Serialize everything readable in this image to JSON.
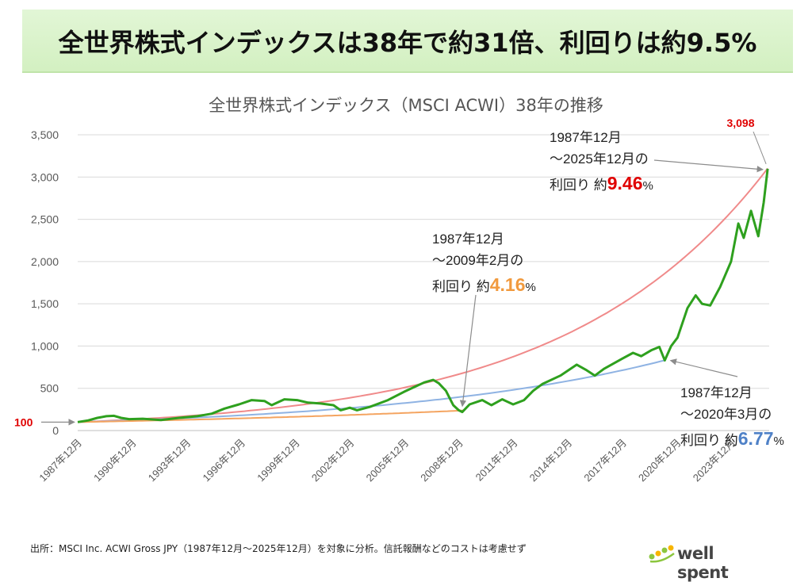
{
  "banner": {
    "text": "全世界株式インデックスは38年で約31倍、利回りは約9.5%"
  },
  "source": "出所：MSCI Inc. ACWI Gross JPY（1987年12月～2025年12月）を対象に分析。信託報酬などのコストは考慮せず",
  "logo": {
    "text": "well spent",
    "icon": "leaf-dots-icon"
  },
  "chart_data": {
    "type": "line",
    "title": "全世界株式インデックス（MSCI ACWI）38年の推移",
    "xlabel": "",
    "ylabel": "",
    "ylim": [
      0,
      3500
    ],
    "yticks": [
      0,
      500,
      1000,
      1500,
      2000,
      2500,
      3000,
      3500
    ],
    "ytick_labels": [
      "0",
      "500",
      "1,000",
      "1,500",
      "2,000",
      "2,500",
      "3,000",
      "3,500"
    ],
    "xlim": [
      1987.917,
      2026.0
    ],
    "xticks": [
      1987.917,
      1990.917,
      1993.917,
      1996.917,
      1999.917,
      2002.917,
      2005.917,
      2008.917,
      2011.917,
      2014.917,
      2017.917,
      2020.917,
      2023.917
    ],
    "xtick_labels": [
      "1987年12月",
      "1990年12月",
      "1993年12月",
      "1996年12月",
      "1999年12月",
      "2002年12月",
      "2005年12月",
      "2008年12月",
      "2011年12月",
      "2014年12月",
      "2017年12月",
      "2020年12月",
      "2023年12月"
    ],
    "grid": true,
    "legend": "none",
    "colors": {
      "index": "#2ea01e",
      "curve_2025": "#f08a8a",
      "curve_2020": "#8fb3e3",
      "curve_2009": "#f4a460",
      "highlight_red": "#e00000",
      "highlight_orange": "#f19a3e",
      "highlight_blue": "#4f81c7"
    },
    "series": [
      {
        "key": "index",
        "x": [
          1987.917,
          1988.5,
          1989.0,
          1989.5,
          1989.917,
          1990.3,
          1990.75,
          1991.5,
          1992.5,
          1993.5,
          1994.5,
          1995.3,
          1996.0,
          1996.8,
          1997.5,
          1998.2,
          1998.6,
          1999.3,
          2000.0,
          2000.6,
          2001.3,
          2002.0,
          2002.4,
          2002.9,
          2003.3,
          2004.0,
          2005.0,
          2005.9,
          2006.5,
          2007.0,
          2007.5,
          2007.8,
          2008.2,
          2008.6,
          2008.9,
          2009.1,
          2009.5,
          2010.2,
          2010.7,
          2011.3,
          2011.9,
          2012.5,
          2013.0,
          2013.5,
          2014.5,
          2015.4,
          2015.9,
          2016.4,
          2016.9,
          2017.9,
          2018.5,
          2018.95,
          2019.5,
          2019.95,
          2020.25,
          2020.6,
          2020.95,
          2021.5,
          2021.95,
          2022.3,
          2022.75,
          2023.3,
          2023.9,
          2024.3,
          2024.6,
          2025.0,
          2025.4,
          2025.7,
          2025.917
        ],
        "y": [
          100,
          120,
          150,
          170,
          175,
          150,
          135,
          140,
          125,
          150,
          170,
          200,
          260,
          310,
          360,
          350,
          300,
          370,
          360,
          330,
          320,
          300,
          240,
          270,
          240,
          280,
          360,
          460,
          520,
          570,
          600,
          560,
          470,
          300,
          240,
          220,
          310,
          360,
          300,
          370,
          310,
          360,
          470,
          550,
          650,
          780,
          720,
          650,
          730,
          850,
          920,
          880,
          950,
          990,
          830,
          1000,
          1100,
          1450,
          1600,
          1500,
          1480,
          1700,
          2000,
          2450,
          2280,
          2600,
          2300,
          2700,
          3098
        ]
      },
      {
        "key": "curve_2025",
        "start": 100,
        "rate_pct": 9.46,
        "from": 1987.917,
        "to": 2025.917
      },
      {
        "key": "curve_2020",
        "start": 100,
        "rate_pct": 6.77,
        "from": 1987.917,
        "to": 2020.25
      },
      {
        "key": "curve_2009",
        "start": 100,
        "rate_pct": 4.16,
        "from": 1987.917,
        "to": 2009.167
      }
    ],
    "annotations": {
      "start_value": "100",
      "end_value": "3,098",
      "a2025": {
        "line1": "1987年12月",
        "line2": "～2025年12月の",
        "prefix": "利回り 約",
        "value": "9.46",
        "suffix": "%"
      },
      "a2009": {
        "line1": "1987年12月",
        "line2": "～2009年2月の",
        "prefix": "利回り 約",
        "value": "4.16",
        "suffix": "%"
      },
      "a2020": {
        "line1": "1987年12月",
        "line2": "～2020年3月の",
        "prefix": "利回り 約",
        "value": "6.77",
        "suffix": "%"
      }
    }
  }
}
